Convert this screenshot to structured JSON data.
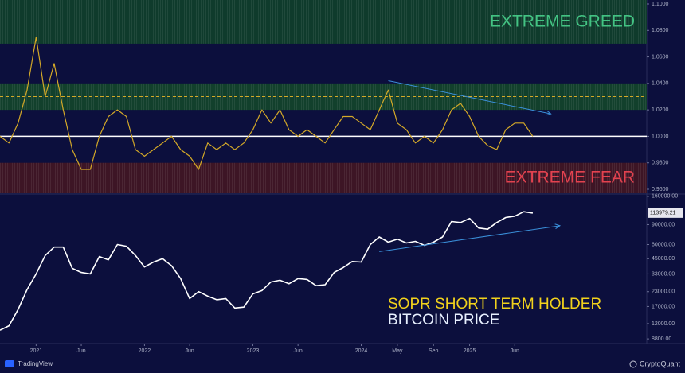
{
  "chart_data": [
    {
      "type": "line",
      "series": [
        {
          "name": "SOPR SHORT TERM HOLDER",
          "color": "#d4a928",
          "values": [
            1.0,
            0.995,
            1.01,
            1.035,
            1.075,
            1.03,
            1.055,
            1.02,
            0.99,
            0.975,
            0.975,
            1.0,
            1.015,
            1.02,
            1.015,
            0.99,
            0.985,
            0.99,
            0.995,
            1.0,
            0.99,
            0.985,
            0.975,
            0.995,
            0.99,
            0.995,
            0.99,
            0.995,
            1.005,
            1.02,
            1.01,
            1.02,
            1.005,
            1.0,
            1.005,
            1.0,
            0.995,
            1.005,
            1.015,
            1.015,
            1.01,
            1.005,
            1.02,
            1.035,
            1.01,
            1.005,
            0.995,
            1.0,
            0.995,
            1.005,
            1.02,
            1.025,
            1.015,
            1.0,
            0.993,
            0.99,
            1.005,
            1.01,
            1.01,
            1.0
          ]
        }
      ],
      "x": [
        "2020-09",
        "2020-10",
        "2020-11",
        "2020-12",
        "2021-01",
        "2021-02",
        "2021-03",
        "2021-04",
        "2021-05",
        "2021-06",
        "2021-07",
        "2021-08",
        "2021-09",
        "2021-10",
        "2021-11",
        "2021-12",
        "2022-01",
        "2022-02",
        "2022-03",
        "2022-04",
        "2022-05",
        "2022-06",
        "2022-07",
        "2022-08",
        "2022-09",
        "2022-10",
        "2022-11",
        "2022-12",
        "2023-01",
        "2023-02",
        "2023-03",
        "2023-04",
        "2023-05",
        "2023-06",
        "2023-07",
        "2023-08",
        "2023-09",
        "2023-10",
        "2023-11",
        "2023-12",
        "2024-01",
        "2024-02",
        "2024-03",
        "2024-04",
        "2024-05",
        "2024-06",
        "2024-07",
        "2024-08",
        "2024-09",
        "2024-10",
        "2024-11",
        "2024-12",
        "2025-01",
        "2025-02",
        "2025-03",
        "2025-04",
        "2025-05",
        "2025-06",
        "2025-07",
        "2025-08"
      ],
      "xlim": [
        "2020-09",
        "2026-08"
      ],
      "ylim": [
        0.957,
        1.103
      ],
      "yticks": [
        {
          "value": 1.1,
          "label": "1.1000"
        },
        {
          "value": 1.08,
          "label": "1.0800"
        },
        {
          "value": 1.06,
          "label": "1.0600"
        },
        {
          "value": 1.04,
          "label": "1.0400"
        },
        {
          "value": 1.02,
          "label": "1.0200"
        },
        {
          "value": 1.0,
          "label": "1.0000"
        },
        {
          "value": 0.98,
          "label": "0.9800"
        },
        {
          "value": 0.96,
          "label": "0.9600"
        }
      ],
      "bands": [
        {
          "from": 1.07,
          "to": 1.103,
          "label": "EXTREME GREED",
          "color": "#0f3b2c",
          "text_color": "#43c383"
        },
        {
          "from": 1.02,
          "to": 1.04,
          "color": "#12402c"
        },
        {
          "from": 0.957,
          "to": 0.98,
          "label": "EXTREME FEAR",
          "color": "#3d1525",
          "text_color": "#e3424f"
        }
      ],
      "reference_lines": [
        {
          "value": 1.0,
          "color": "#ffffff"
        },
        {
          "value": 1.03,
          "color": "#d4a928"
        }
      ],
      "trendlines": [
        {
          "x": [
            "2024-04",
            "2025-10"
          ],
          "y": [
            1.042,
            1.017
          ],
          "color": "#3a8fd9"
        }
      ]
    },
    {
      "type": "line",
      "log_scale": true,
      "series": [
        {
          "name": "BITCOIN PRICE",
          "color": "#ffffff",
          "values": [
            10500,
            11500,
            16000,
            24000,
            33000,
            48000,
            57000,
            57000,
            37000,
            34000,
            33000,
            47000,
            44000,
            60000,
            58000,
            48000,
            38000,
            42000,
            45000,
            39000,
            30000,
            20000,
            23000,
            21000,
            19500,
            20000,
            16500,
            16800,
            22000,
            23500,
            28000,
            29000,
            27000,
            30000,
            29500,
            26000,
            26500,
            34000,
            37500,
            42500,
            42000,
            60000,
            70000,
            63000,
            67000,
            62000,
            64000,
            59000,
            63000,
            70000,
            96000,
            94000,
            102000,
            84000,
            82000,
            94000,
            104000,
            107000,
            117000,
            113979.21
          ]
        }
      ],
      "x": [
        "2020-09",
        "2020-10",
        "2020-11",
        "2020-12",
        "2021-01",
        "2021-02",
        "2021-03",
        "2021-04",
        "2021-05",
        "2021-06",
        "2021-07",
        "2021-08",
        "2021-09",
        "2021-10",
        "2021-11",
        "2021-12",
        "2022-01",
        "2022-02",
        "2022-03",
        "2022-04",
        "2022-05",
        "2022-06",
        "2022-07",
        "2022-08",
        "2022-09",
        "2022-10",
        "2022-11",
        "2022-12",
        "2023-01",
        "2023-02",
        "2023-03",
        "2023-04",
        "2023-05",
        "2023-06",
        "2023-07",
        "2023-08",
        "2023-09",
        "2023-10",
        "2023-11",
        "2023-12",
        "2024-01",
        "2024-02",
        "2024-03",
        "2024-04",
        "2024-05",
        "2024-06",
        "2024-07",
        "2024-08",
        "2024-09",
        "2024-10",
        "2024-11",
        "2024-12",
        "2025-01",
        "2025-02",
        "2025-03",
        "2025-04",
        "2025-05",
        "2025-06",
        "2025-07",
        "2025-08"
      ],
      "xlim": [
        "2020-09",
        "2026-08"
      ],
      "xticks": [
        {
          "value": "2021-01",
          "label": "2021"
        },
        {
          "value": "2021-06",
          "label": "Jun"
        },
        {
          "value": "2022-01",
          "label": "2022"
        },
        {
          "value": "2022-06",
          "label": "Jun"
        },
        {
          "value": "2023-01",
          "label": "2023"
        },
        {
          "value": "2023-06",
          "label": "Jun"
        },
        {
          "value": "2024-01",
          "label": "2024"
        },
        {
          "value": "2024-05",
          "label": "May"
        },
        {
          "value": "2024-09",
          "label": "Sep"
        },
        {
          "value": "2025-01",
          "label": "2025"
        },
        {
          "value": "2025-06",
          "label": "Jun"
        }
      ],
      "ylim": [
        8000,
        165000
      ],
      "yticks": [
        {
          "value": 160000,
          "label": "160000.00"
        },
        {
          "value": 90000,
          "label": "90000.00"
        },
        {
          "value": 60000,
          "label": "60000.00"
        },
        {
          "value": 45000,
          "label": "45000.00"
        },
        {
          "value": 33000,
          "label": "33000.00"
        },
        {
          "value": 23000,
          "label": "23000.00"
        },
        {
          "value": 17000,
          "label": "17000.00"
        },
        {
          "value": 12000,
          "label": "12000.00"
        },
        {
          "value": 8800,
          "label": "8800.00"
        }
      ],
      "trendlines": [
        {
          "x": [
            "2024-03",
            "2025-11"
          ],
          "y": [
            52000,
            88000
          ],
          "color": "#3a8fd9"
        }
      ]
    }
  ],
  "footer": {
    "left": "TradingView",
    "right": "CryptoQuant"
  }
}
